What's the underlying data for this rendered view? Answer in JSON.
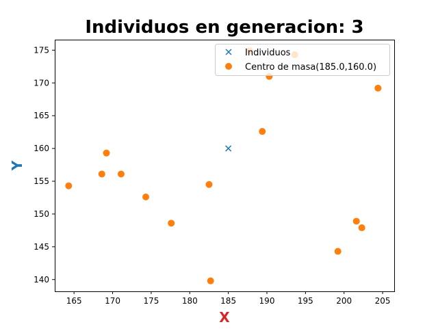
{
  "chart_data": {
    "type": "scatter",
    "title": "Individuos en generacion: 3",
    "xlabel": "X",
    "ylabel": "Y",
    "xlim": [
      162.5,
      206.5
    ],
    "ylim": [
      138.2,
      176.6
    ],
    "xticks": [
      165,
      170,
      175,
      180,
      185,
      190,
      195,
      200,
      205
    ],
    "yticks": [
      140,
      145,
      150,
      155,
      160,
      165,
      170,
      175
    ],
    "xtick_labels": [
      "165",
      "170",
      "175",
      "180",
      "185",
      "190",
      "195",
      "200",
      "205"
    ],
    "ytick_labels": [
      "140",
      "145",
      "150",
      "155",
      "160",
      "165",
      "170",
      "175"
    ],
    "grid": false,
    "legend_position": "top-right",
    "series": [
      {
        "name": "Individuos",
        "marker": "x",
        "color": "#1f77b4",
        "points": [
          [
            185.0,
            160.0
          ]
        ]
      },
      {
        "name": "Centro de masa(185.0,160.0)",
        "marker": "o",
        "color": "#ff7f0e",
        "points": [
          [
            164.3,
            154.3
          ],
          [
            168.6,
            156.1
          ],
          [
            169.2,
            159.3
          ],
          [
            171.1,
            156.1
          ],
          [
            174.3,
            152.6
          ],
          [
            177.6,
            148.6
          ],
          [
            182.5,
            154.5
          ],
          [
            182.7,
            139.8
          ],
          [
            187.8,
            174.9
          ],
          [
            189.4,
            162.6
          ],
          [
            190.3,
            171.0
          ],
          [
            193.6,
            174.3
          ],
          [
            199.2,
            144.3
          ],
          [
            201.6,
            148.9
          ],
          [
            202.3,
            147.9
          ],
          [
            204.4,
            169.2
          ]
        ]
      }
    ],
    "colors": {
      "xlabel": "#d62728",
      "ylabel": "#1f77b4",
      "title": "#000000"
    }
  }
}
